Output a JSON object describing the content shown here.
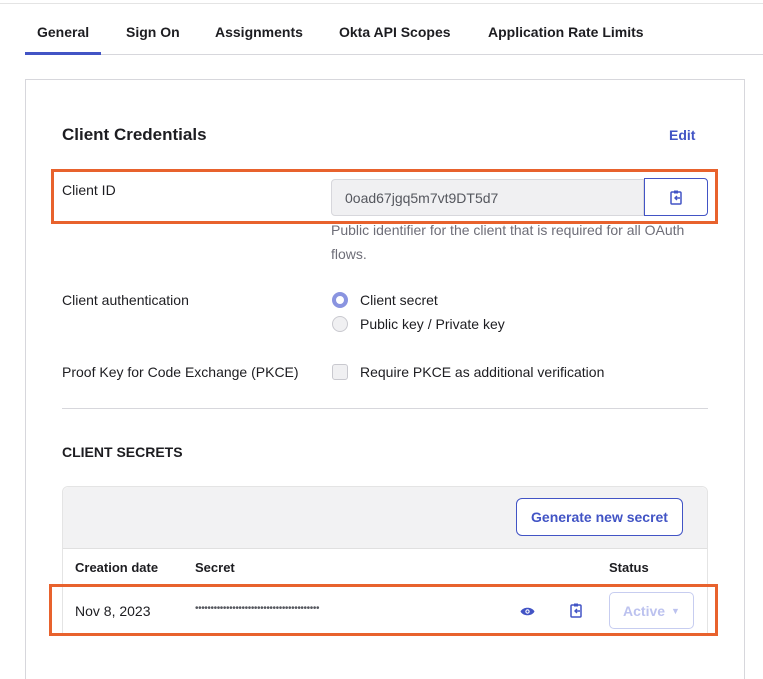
{
  "tabs": [
    {
      "label": "General",
      "active": true
    },
    {
      "label": "Sign On"
    },
    {
      "label": "Assignments"
    },
    {
      "label": "Okta API Scopes"
    },
    {
      "label": "Application Rate Limits"
    }
  ],
  "credentials": {
    "title": "Client Credentials",
    "edit_label": "Edit",
    "client_id_label": "Client ID",
    "client_id_value": "0oad67jgq5m7vt9DT5d7",
    "client_id_help": "Public identifier for the client that is required for all OAuth flows.",
    "auth_label": "Client authentication",
    "auth_options": [
      {
        "label": "Client secret",
        "selected": true
      },
      {
        "label": "Public key / Private key",
        "selected": false
      }
    ],
    "pkce_label": "Proof Key for Code Exchange (PKCE)",
    "pkce_option": "Require PKCE as additional verification",
    "pkce_checked": false
  },
  "secrets": {
    "title": "CLIENT SECRETS",
    "generate_label": "Generate new secret",
    "columns": [
      "Creation date",
      "Secret",
      "Status"
    ],
    "rows": [
      {
        "date": "Nov 8, 2023",
        "secret": "••••••••••••••••••••••••••••••••••••••••",
        "status": "Active"
      }
    ]
  },
  "colors": {
    "accent": "#4254c5",
    "highlight": "#e8622d"
  }
}
